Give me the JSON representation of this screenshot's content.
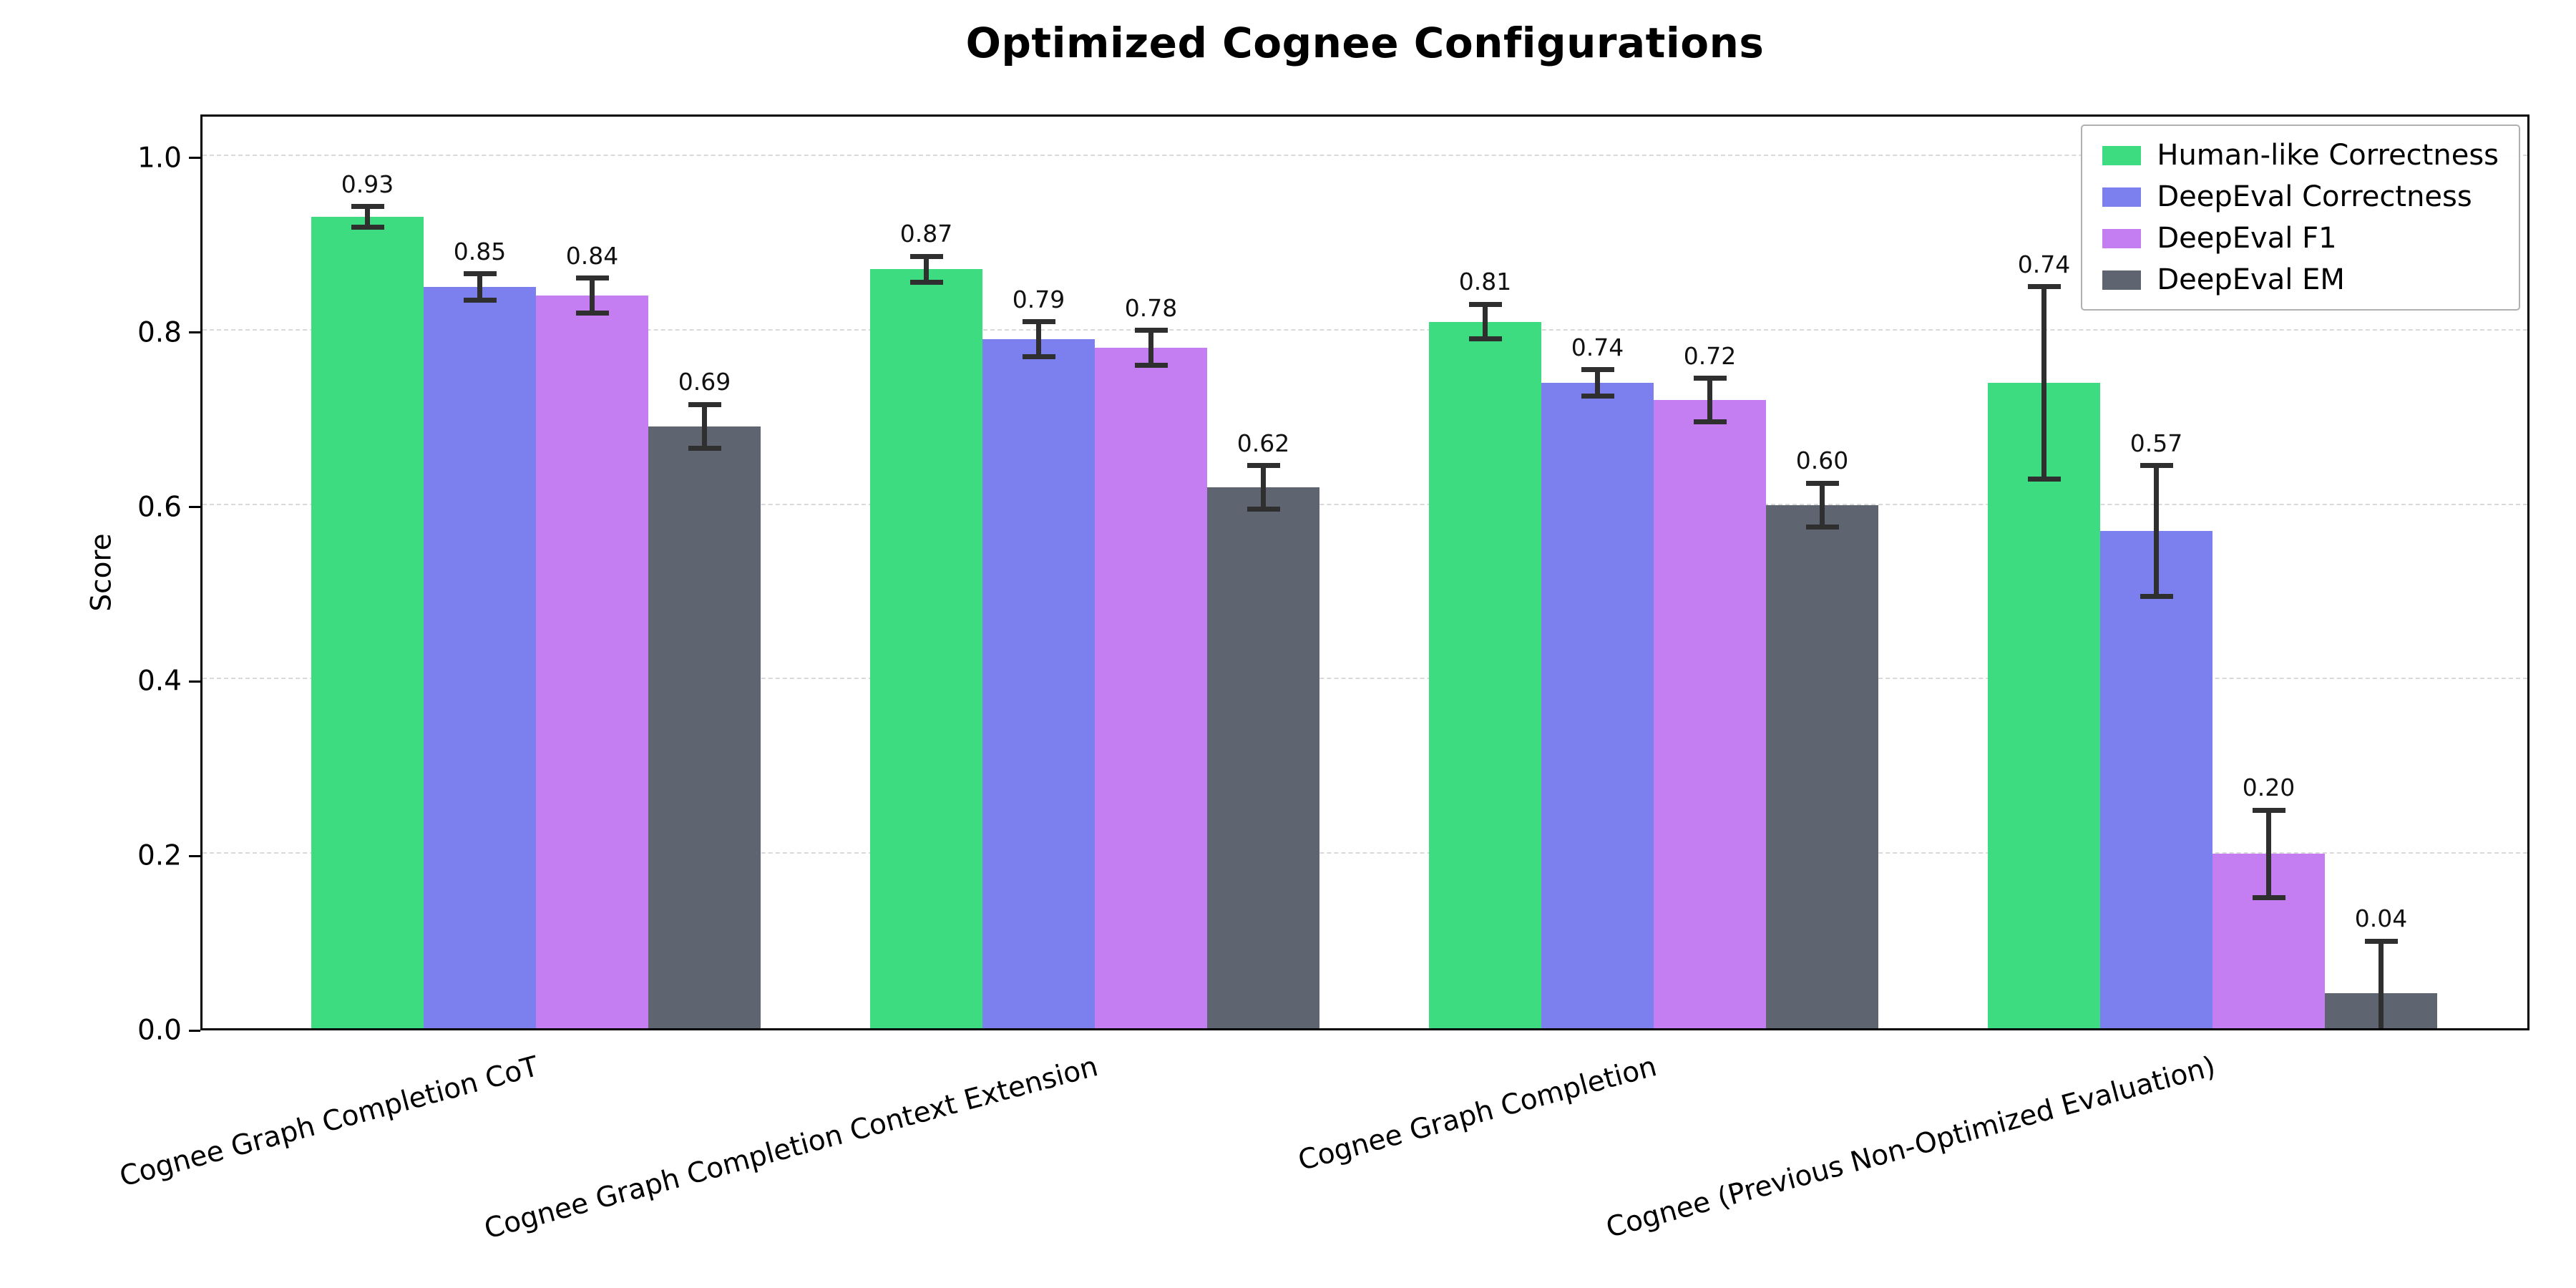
{
  "chart_data": {
    "type": "bar",
    "title": "Optimized Cognee Configurations",
    "xlabel": "",
    "ylabel": "Score",
    "ylim": [
      0,
      1.05
    ],
    "yticks": [
      0,
      0.2,
      0.4,
      0.6,
      0.8,
      1.0
    ],
    "grid": "horizontal-dashed",
    "legend_position": "upper-right",
    "error_bar_color": "#2f2f2f",
    "categories": [
      "Cognee Graph Completion CoT",
      "Cognee Graph Completion Context Extension",
      "Cognee Graph Completion",
      "Cognee (Previous Non-Optimized Evaluation)"
    ],
    "series": [
      {
        "name": "Human-like Correctness",
        "color": "#3edc81",
        "values": [
          0.93,
          0.87,
          0.81,
          0.74
        ],
        "errors": [
          0.012,
          0.015,
          0.02,
          0.11
        ]
      },
      {
        "name": "DeepEval Correctness",
        "color": "#7b80ee",
        "values": [
          0.85,
          0.79,
          0.74,
          0.57
        ],
        "errors": [
          0.015,
          0.02,
          0.015,
          0.075
        ]
      },
      {
        "name": "DeepEval F1",
        "color": "#c47ef2",
        "values": [
          0.84,
          0.78,
          0.72,
          0.2
        ],
        "errors": [
          0.02,
          0.02,
          0.025,
          0.05
        ]
      },
      {
        "name": "DeepEval EM",
        "color": "#5f6570",
        "values": [
          0.69,
          0.62,
          0.6,
          0.04
        ],
        "errors": [
          0.025,
          0.025,
          0.025,
          0.06
        ]
      }
    ]
  }
}
